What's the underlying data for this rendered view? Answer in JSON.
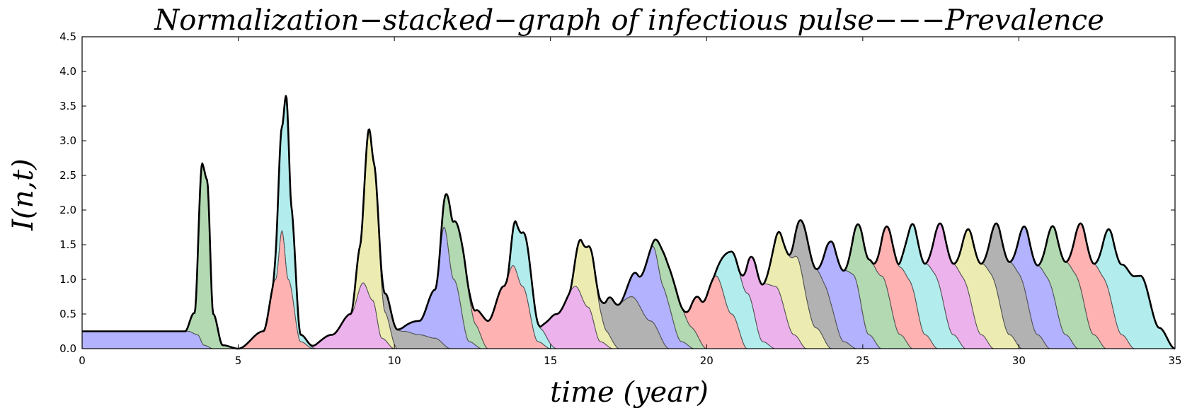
{
  "chart_data": {
    "type": "area",
    "title": "Normalization−stacked−graph of infectious pulse−−−Prevalence",
    "xlabel": "time (year)",
    "ylabel": "I(n,t)",
    "xlim": [
      0,
      35
    ],
    "ylim": [
      0,
      4.5
    ],
    "xticks": [
      "0",
      "5",
      "10",
      "15",
      "20",
      "25",
      "30",
      "35"
    ],
    "yticks": [
      "0.0",
      "0.5",
      "1.0",
      "1.5",
      "2.0",
      "2.5",
      "3.0",
      "3.5",
      "4.0",
      "4.5"
    ],
    "grid": false,
    "legend": "none",
    "colors": [
      "#0000ff",
      "#008000",
      "#ff0000",
      "#00bfbf",
      "#bf00bf",
      "#bfbf00",
      "#000000"
    ],
    "band_opacity": 0.3,
    "series": [
      {
        "values": [
          [
            0,
            0.25
          ],
          [
            3.4,
            0.25
          ],
          [
            3.7,
            0.2
          ],
          [
            3.9,
            0.05
          ],
          [
            4.2,
            0.0
          ]
        ]
      },
      {
        "values": [
          [
            3.3,
            0.0
          ],
          [
            3.6,
            0.3
          ],
          [
            3.85,
            2.6
          ],
          [
            4.0,
            2.4
          ],
          [
            4.2,
            0.5
          ],
          [
            4.5,
            0.05
          ],
          [
            5.0,
            0.0
          ]
        ]
      },
      {
        "values": [
          [
            5.0,
            0.0
          ],
          [
            5.8,
            0.25
          ],
          [
            6.2,
            1.0
          ],
          [
            6.4,
            1.7
          ],
          [
            6.6,
            1.0
          ],
          [
            7.0,
            0.1
          ],
          [
            7.4,
            0.0
          ]
        ]
      },
      {
        "values": [
          [
            6.1,
            0.0
          ],
          [
            6.4,
            1.5
          ],
          [
            6.55,
            2.5
          ],
          [
            6.7,
            1.2
          ],
          [
            7.0,
            0.1
          ],
          [
            7.5,
            0.0
          ]
        ]
      },
      {
        "values": [
          [
            7.2,
            0.0
          ],
          [
            8.0,
            0.2
          ],
          [
            8.6,
            0.5
          ],
          [
            9.0,
            0.95
          ],
          [
            9.3,
            0.7
          ],
          [
            9.6,
            0.15
          ],
          [
            10.0,
            0.0
          ]
        ]
      },
      {
        "values": [
          [
            8.6,
            0.0
          ],
          [
            8.9,
            0.6
          ],
          [
            9.2,
            2.4
          ],
          [
            9.35,
            2.0
          ],
          [
            9.7,
            0.4
          ],
          [
            10.1,
            0.0
          ]
        ]
      },
      {
        "values": [
          [
            9.3,
            0.0
          ],
          [
            9.8,
            0.3
          ],
          [
            10.3,
            0.25
          ],
          [
            10.8,
            0.2
          ],
          [
            11.3,
            0.15
          ],
          [
            11.8,
            0.0
          ]
        ]
      },
      {
        "values": [
          [
            10.0,
            0.0
          ],
          [
            10.8,
            0.2
          ],
          [
            11.3,
            0.7
          ],
          [
            11.6,
            1.7
          ],
          [
            11.9,
            1.0
          ],
          [
            12.4,
            0.1
          ],
          [
            12.8,
            0.0
          ]
        ]
      },
      {
        "values": [
          [
            11.4,
            0.0
          ],
          [
            11.8,
            0.8
          ],
          [
            12.2,
            1.0
          ],
          [
            12.6,
            0.3
          ],
          [
            13.0,
            0.0
          ]
        ]
      },
      {
        "values": [
          [
            12.2,
            0.0
          ],
          [
            13.0,
            0.4
          ],
          [
            13.5,
            0.9
          ],
          [
            13.8,
            1.2
          ],
          [
            14.1,
            0.9
          ],
          [
            14.6,
            0.1
          ],
          [
            15.0,
            0.0
          ]
        ]
      },
      {
        "values": [
          [
            13.6,
            0.0
          ],
          [
            13.9,
            0.7
          ],
          [
            14.2,
            0.8
          ],
          [
            14.7,
            0.2
          ],
          [
            15.2,
            0.0
          ]
        ]
      },
      {
        "values": [
          [
            14.6,
            0.0
          ],
          [
            15.2,
            0.5
          ],
          [
            15.8,
            0.9
          ],
          [
            16.2,
            0.6
          ],
          [
            16.6,
            0.1
          ],
          [
            17.0,
            0.0
          ]
        ]
      },
      {
        "values": [
          [
            15.6,
            0.0
          ],
          [
            16.0,
            0.8
          ],
          [
            16.3,
            0.9
          ],
          [
            16.8,
            0.2
          ],
          [
            17.2,
            0.0
          ]
        ]
      },
      {
        "values": [
          [
            16.4,
            0.0
          ],
          [
            17.0,
            0.6
          ],
          [
            17.6,
            0.75
          ],
          [
            18.2,
            0.4
          ],
          [
            18.8,
            0.0
          ]
        ]
      },
      {
        "values": [
          [
            17.2,
            0.0
          ],
          [
            17.8,
            0.4
          ],
          [
            18.3,
            1.1
          ],
          [
            18.6,
            0.8
          ],
          [
            19.2,
            0.1
          ],
          [
            19.6,
            0.0
          ]
        ]
      },
      {
        "values": [
          [
            18.2,
            0.0
          ],
          [
            18.6,
            0.5
          ],
          [
            19.0,
            0.6
          ],
          [
            19.5,
            0.3
          ],
          [
            20.0,
            0.0
          ]
        ]
      },
      {
        "values": [
          [
            19.2,
            0.0
          ],
          [
            19.8,
            0.6
          ],
          [
            20.3,
            1.05
          ],
          [
            20.8,
            0.5
          ],
          [
            21.3,
            0.0
          ]
        ]
      },
      {
        "values": [
          [
            20.2,
            0.0
          ],
          [
            20.8,
            0.9
          ],
          [
            21.3,
            0.8
          ],
          [
            21.8,
            0.1
          ],
          [
            22.2,
            0.0
          ]
        ]
      },
      {
        "values": [
          [
            21.0,
            0.0
          ],
          [
            21.6,
            0.8
          ],
          [
            22.2,
            0.9
          ],
          [
            22.8,
            0.2
          ],
          [
            23.2,
            0.0
          ]
        ]
      },
      {
        "values": [
          [
            21.8,
            0.0
          ],
          [
            22.4,
            0.9
          ],
          [
            22.9,
            1.15
          ],
          [
            23.5,
            0.3
          ],
          [
            24.0,
            0.0
          ]
        ]
      },
      {
        "values": [
          [
            22.6,
            0.0
          ],
          [
            23.2,
            0.9
          ],
          [
            23.8,
            0.8
          ],
          [
            24.4,
            0.1
          ],
          [
            24.8,
            0.0
          ]
        ]
      },
      {
        "values": [
          [
            23.5,
            0.0
          ],
          [
            24.1,
            1.0
          ],
          [
            24.7,
            1.05
          ],
          [
            25.2,
            0.2
          ],
          [
            25.6,
            0.0
          ]
        ]
      },
      {
        "values": [
          [
            24.4,
            0.0
          ],
          [
            25.0,
            1.1
          ],
          [
            25.6,
            1.05
          ],
          [
            26.2,
            0.2
          ],
          [
            26.6,
            0.0
          ]
        ]
      },
      {
        "values": [
          [
            25.3,
            0.0
          ],
          [
            25.9,
            1.0
          ],
          [
            26.5,
            0.95
          ],
          [
            27.0,
            0.2
          ],
          [
            27.4,
            0.0
          ]
        ]
      },
      {
        "values": [
          [
            26.1,
            0.0
          ],
          [
            26.7,
            1.0
          ],
          [
            27.3,
            1.05
          ],
          [
            27.9,
            0.2
          ],
          [
            28.3,
            0.0
          ]
        ]
      },
      {
        "values": [
          [
            27.0,
            0.0
          ],
          [
            27.6,
            1.05
          ],
          [
            28.2,
            1.0
          ],
          [
            28.8,
            0.2
          ],
          [
            29.2,
            0.0
          ]
        ]
      },
      {
        "values": [
          [
            27.9,
            0.0
          ],
          [
            28.5,
            1.0
          ],
          [
            29.1,
            1.05
          ],
          [
            29.7,
            0.2
          ],
          [
            30.1,
            0.0
          ]
        ]
      },
      {
        "values": [
          [
            28.8,
            0.0
          ],
          [
            29.4,
            1.05
          ],
          [
            30.0,
            1.05
          ],
          [
            30.6,
            0.2
          ],
          [
            31.0,
            0.0
          ]
        ]
      },
      {
        "values": [
          [
            29.7,
            0.0
          ],
          [
            30.3,
            1.0
          ],
          [
            30.9,
            1.0
          ],
          [
            31.5,
            0.2
          ],
          [
            31.9,
            0.0
          ]
        ]
      },
      {
        "values": [
          [
            30.6,
            0.0
          ],
          [
            31.2,
            1.05
          ],
          [
            31.8,
            1.05
          ],
          [
            32.4,
            0.2
          ],
          [
            32.8,
            0.0
          ]
        ]
      },
      {
        "values": [
          [
            31.5,
            0.0
          ],
          [
            32.1,
            1.05
          ],
          [
            32.7,
            1.0
          ],
          [
            33.3,
            0.2
          ],
          [
            33.7,
            0.0
          ]
        ]
      },
      {
        "values": [
          [
            32.4,
            0.0
          ],
          [
            33.0,
            1.0
          ],
          [
            33.9,
            1.05
          ],
          [
            34.5,
            0.3
          ],
          [
            35.0,
            0.0
          ]
        ]
      }
    ]
  }
}
